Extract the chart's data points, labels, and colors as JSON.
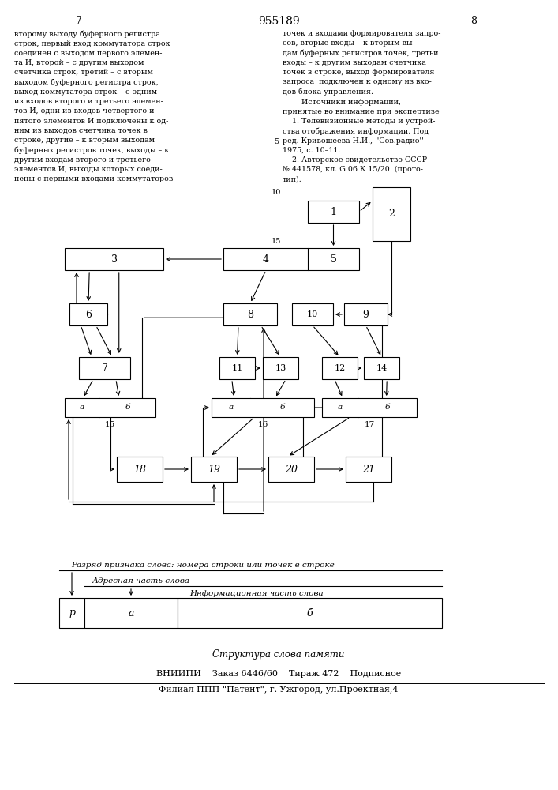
{
  "title": "955189",
  "page_left": "7",
  "page_right": "8",
  "bg_color": "#ffffff",
  "text_color": "#000000",
  "text_left": "второму выходу буферного регистра\nстрок, первый вход коммутатора строк\nсоединен с выходом первого элемен-\nта И, второй – с другим выходом\nсчетчика строк, третий – с вторым\nвыходом буферного регистра строк,\nвыход коммутатора строк – с одним\nиз входов второго и третьего элемен-\nтов И, одни из входов четвертого и\nпятого элементов И подключены к од-\nним из выходов счетчика точек в\nстроке, другие – к вторым выходам\nбуферных регистров точек, выходы – к\nдругим входам второго и третьего\nэлементов И, выходы которых соеди-\nнены с первыми входами коммутаторов",
  "text_right": "точек и входами формирователя запро-\nсов, вторые входы – к вторым вы-\nдам буферных регистров точек, третьи\nвходы – к другим выходам счетчика\nточек в строке, выход формирователя\nзапроса  подключен к одному из вхо-\nдов блока управления.\n        Источники информации,\nпринятые во внимание при экспертизе\n    1. Телевизионные методы и устрой-\nства отображения информации. Под\nред. Кривошеева Н.И., ''Сов.радио''\n1975, с. 10–11.\n    2. Авторское свидетельство СССР\n№ 441578, кл. G 06 К 15/20  (прото-\nтип).",
  "footer_italic": "Структура слова памяти",
  "footer1": "ВНИИПИ    Заказ 6446/60    Тираж 472    Подписное",
  "footer2": "Филиал ППП \"Патент\", г. Ужгород, ул.Проектная,4",
  "word_label1": "Разряд признака слова: номера строки или точек в строке",
  "word_label2": "Адресная часть слова",
  "word_label3": "Информационная часть слова",
  "word_p": "р",
  "word_a": "а",
  "word_b": "б",
  "line_nums": {
    "5": 820,
    "10": 757,
    "15": 694
  }
}
